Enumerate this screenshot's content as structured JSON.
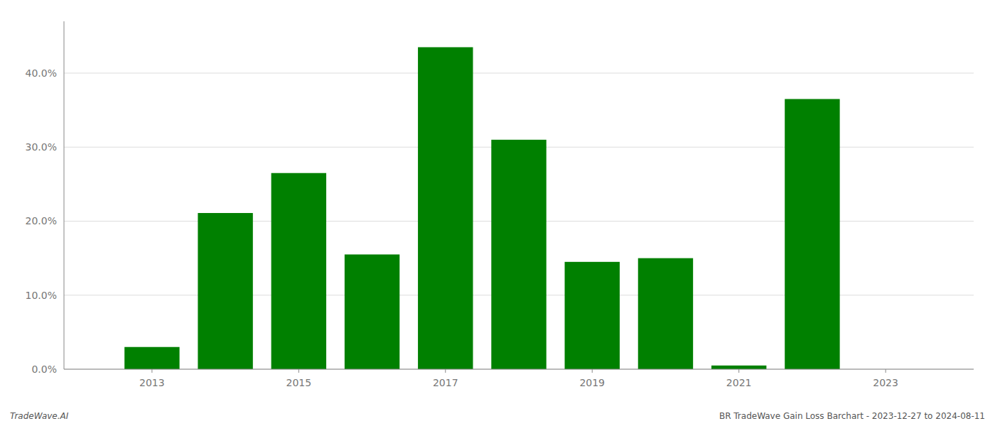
{
  "chart_data": {
    "type": "bar",
    "x": [
      2013,
      2014,
      2015,
      2016,
      2017,
      2018,
      2019,
      2020,
      2021,
      2022,
      2023
    ],
    "values": [
      0.03,
      0.211,
      0.265,
      0.155,
      0.435,
      0.31,
      0.145,
      0.15,
      0.005,
      0.365,
      0.0
    ],
    "color": "#008000",
    "xlim": [
      2011.8,
      2024.2
    ],
    "xticks": [
      2013,
      2015,
      2017,
      2019,
      2021,
      2023
    ],
    "ylim": [
      0,
      0.47
    ],
    "yticks": [
      {
        "value": 0.0,
        "label": "0.0%"
      },
      {
        "value": 0.1,
        "label": "10.0%"
      },
      {
        "value": 0.2,
        "label": "20.0%"
      },
      {
        "value": 0.3,
        "label": "30.0%"
      },
      {
        "value": 0.4,
        "label": "40.0%"
      }
    ],
    "grid": true,
    "annotations": [
      "TradeWave.AI",
      "BR TradeWave Gain Loss Barchart - 2023-12-27 to 2024-08-11"
    ]
  }
}
